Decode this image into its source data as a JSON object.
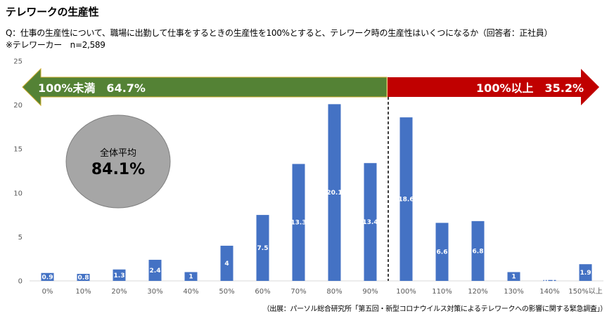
{
  "title": "テレワークの生産性",
  "question": "Q：仕事の生産性について、職場に出勤して仕事をするときの生産性を100%とすると、テレワーク時の生産性はいくつになるか（回答者：正社員）",
  "note": "※テレワーカー　n=2,589",
  "source": "（出展：パーソル総合研究所「第五回・新型コロナウイルス対策によるテレワークへの影響に関する緊急調査」）",
  "average": {
    "label": "全体平均",
    "value": "84.1%"
  },
  "left_arrow": {
    "label": "100%未満　64.7%",
    "color": "#548235"
  },
  "right_arrow": {
    "label": "100%以上　35.2%",
    "color": "#c00000"
  },
  "chart_data": {
    "type": "bar",
    "categories": [
      "0%",
      "10%",
      "20%",
      "30%",
      "40%",
      "50%",
      "60%",
      "70%",
      "80%",
      "90%",
      "100%",
      "110%",
      "120%",
      "130%",
      "140%",
      "150%以上"
    ],
    "values": [
      0.9,
      0.8,
      1.3,
      2.4,
      1,
      4,
      7.5,
      13.3,
      20.1,
      13.4,
      18.6,
      6.6,
      6.8,
      1,
      0.1,
      1.9
    ],
    "data_labels": [
      "0.9",
      "0.8",
      "1.3",
      "2.4",
      "1",
      "4",
      "7.5",
      "13.3",
      "20.1",
      "13.4",
      "18.6",
      "6.6",
      "6.8",
      "1",
      "0.1",
      "1.9"
    ],
    "yticks": [
      "0",
      "5",
      "10",
      "15",
      "20",
      "25"
    ],
    "ylim": [
      0,
      25
    ],
    "bar_color": "#4472c4",
    "grid": false,
    "divider_after_category": "90%"
  }
}
